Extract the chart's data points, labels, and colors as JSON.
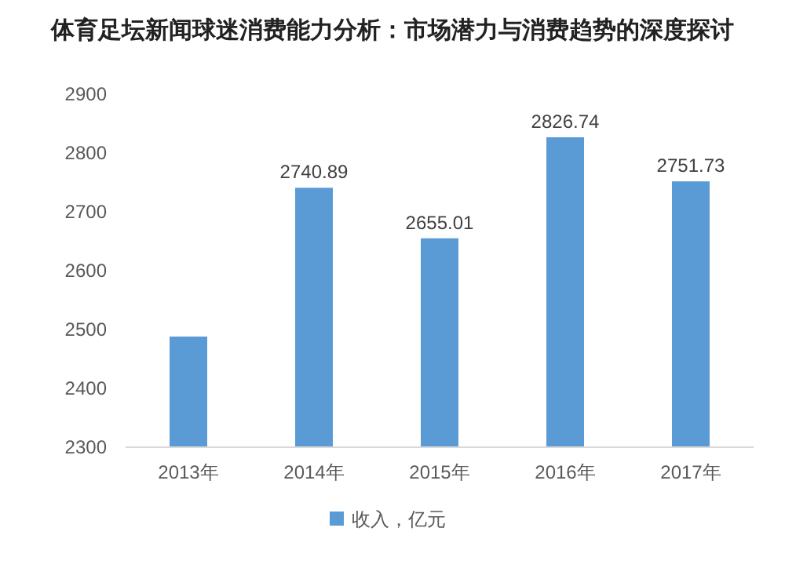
{
  "chart_data": {
    "type": "bar",
    "title": "体育足坛新闻球迷消费能力分析：市场潜力与消费趋势的深度探讨",
    "categories": [
      "2013年",
      "2014年",
      "2015年",
      "2016年",
      "2017年"
    ],
    "series": [
      {
        "name": "收入，亿元",
        "color": "#5b9bd5",
        "values": [
          2488,
          2740.89,
          2655.01,
          2826.74,
          2751.73
        ],
        "value_labels": [
          null,
          "2740.89",
          "2655.01",
          "2826.74",
          "2751.73"
        ]
      }
    ],
    "ylim": [
      2300,
      2900
    ],
    "yticks": [
      2300,
      2400,
      2500,
      2600,
      2700,
      2800,
      2900
    ],
    "grid": false,
    "legend": "bottom"
  }
}
